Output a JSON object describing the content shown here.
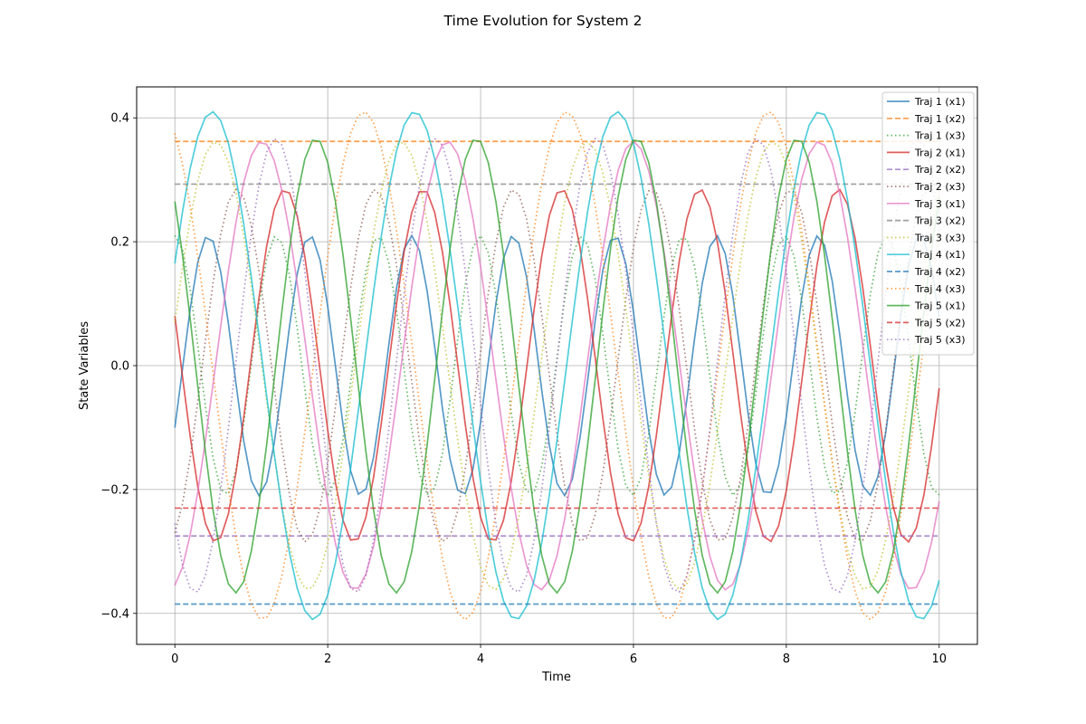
{
  "chart_data": {
    "type": "line",
    "title": "Time Evolution for System 2",
    "xlabel": "Time",
    "ylabel": "State Variables",
    "xlim": [
      -0.5,
      10.5
    ],
    "ylim": [
      -0.45,
      0.45
    ],
    "xticks": [
      0,
      2,
      4,
      6,
      8,
      10
    ],
    "yticks": [
      -0.4,
      -0.2,
      0.0,
      0.2,
      0.4
    ],
    "xtick_labels": [
      "0",
      "2",
      "4",
      "6",
      "8",
      "10"
    ],
    "ytick_labels": [
      "−0.4",
      "−0.2",
      "0.0",
      "0.2",
      "0.4"
    ],
    "grid": true,
    "legend_position": "top-right",
    "x_range": [
      0,
      10
    ],
    "series": [
      {
        "name": "Traj 1 (x1)",
        "color": "#1f77b4",
        "dash": "solid",
        "kind": "sine",
        "amplitude": 0.21,
        "period": 1.33,
        "phase_value_at_0": -0.1,
        "initial_direction": "up"
      },
      {
        "name": "Traj 1 (x2)",
        "color": "#ff7f0e",
        "dash": "dashed",
        "kind": "constant",
        "value": 0.362
      },
      {
        "name": "Traj 1 (x3)",
        "color": "#2ca02c",
        "dash": "dotted",
        "kind": "sine",
        "amplitude": 0.21,
        "period": 1.33,
        "phase_value_at_0": 0.21,
        "initial_direction": "down"
      },
      {
        "name": "Traj 2 (x1)",
        "color": "#d62728",
        "dash": "solid",
        "kind": "sine",
        "amplitude": 0.285,
        "period": 1.81,
        "phase_value_at_0": 0.08,
        "initial_direction": "down"
      },
      {
        "name": "Traj 2 (x2)",
        "color": "#9467bd",
        "dash": "dashed",
        "kind": "constant",
        "value": -0.275
      },
      {
        "name": "Traj 2 (x3)",
        "color": "#8c564b",
        "dash": "dotted",
        "kind": "sine",
        "amplitude": 0.285,
        "period": 1.81,
        "phase_value_at_0": -0.27,
        "initial_direction": "up"
      },
      {
        "name": "Traj 3 (x1)",
        "color": "#e377c2",
        "dash": "solid",
        "kind": "sine",
        "amplitude": 0.362,
        "period": 2.43,
        "phase_value_at_0": -0.355,
        "initial_direction": "up"
      },
      {
        "name": "Traj 3 (x2)",
        "color": "#7f7f7f",
        "dash": "dashed",
        "kind": "constant",
        "value": 0.293
      },
      {
        "name": "Traj 3 (x3)",
        "color": "#bcbd22",
        "dash": "dotted",
        "kind": "sine",
        "amplitude": 0.362,
        "period": 2.43,
        "phase_value_at_0": 0.07,
        "initial_direction": "up"
      },
      {
        "name": "Traj 4 (x1)",
        "color": "#17becf",
        "dash": "solid",
        "kind": "sine",
        "amplitude": 0.41,
        "period": 2.65,
        "phase_value_at_0": 0.165,
        "initial_direction": "up"
      },
      {
        "name": "Traj 4 (x2)",
        "color": "#1f77b4",
        "dash": "dashed",
        "kind": "constant",
        "value": -0.385
      },
      {
        "name": "Traj 4 (x3)",
        "color": "#ff7f0e",
        "dash": "dotted",
        "kind": "sine",
        "amplitude": 0.41,
        "period": 2.65,
        "phase_value_at_0": 0.375,
        "initial_direction": "down"
      },
      {
        "name": "Traj 5 (x1)",
        "color": "#2ca02c",
        "dash": "solid",
        "kind": "sine",
        "amplitude": 0.367,
        "period": 2.1,
        "phase_value_at_0": 0.265,
        "initial_direction": "down"
      },
      {
        "name": "Traj 5 (x2)",
        "color": "#d62728",
        "dash": "dashed",
        "kind": "constant",
        "value": -0.23
      },
      {
        "name": "Traj 5 (x3)",
        "color": "#9467bd",
        "dash": "dotted",
        "kind": "sine",
        "amplitude": 0.367,
        "period": 2.1,
        "phase_value_at_0": -0.255,
        "initial_direction": "down"
      }
    ]
  }
}
